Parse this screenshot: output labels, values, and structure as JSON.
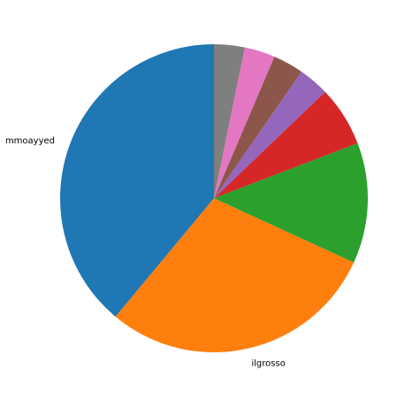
{
  "chart_data": {
    "type": "pie",
    "title": "",
    "labels": [
      "mmoayyed",
      "ilgrosso",
      "",
      "",
      "",
      "",
      "",
      ""
    ],
    "values": [
      40.0,
      30.0,
      13.0,
      6.5,
      3.3,
      3.3,
      3.3,
      3.3
    ],
    "colors": [
      "#1f77b4",
      "#ff7f0e",
      "#2ca02c",
      "#d62728",
      "#9467bd",
      "#8c564b",
      "#e377c2",
      "#7f7f7f"
    ],
    "start_angle_deg": 90,
    "direction": "counterclockwise",
    "legend": "none"
  }
}
